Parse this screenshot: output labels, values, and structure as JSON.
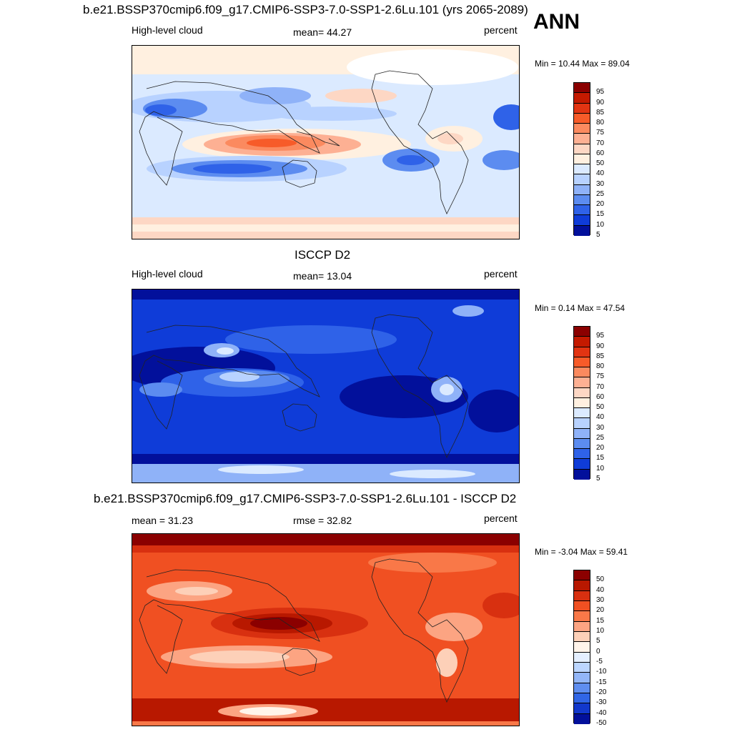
{
  "header": {
    "ann": "ANN"
  },
  "panels": [
    {
      "title": "b.e21.BSSP370cmip6.f09_g17.CMIP6-SSP3-7.0-SSP1-2.6Lu.101 (yrs 2065-2089)",
      "left_label": "High-level cloud",
      "center_label": "mean=  44.27",
      "units": "percent",
      "minmax": "Min =  10.44 Max =  89.04",
      "colorbar_labels": [
        "95",
        "90",
        "85",
        "80",
        "75",
        "70",
        "60",
        "50",
        "40",
        "30",
        "25",
        "20",
        "15",
        "10",
        "5"
      ],
      "colorbar_colors": [
        "#8b0000",
        "#c41a00",
        "#e23412",
        "#f75b29",
        "#fb8a5f",
        "#fdb093",
        "#fdd7c4",
        "#fff0e0",
        "#dbeaff",
        "#b8d2ff",
        "#8fb2f8",
        "#5c8cf0",
        "#2f62e8",
        "#0f3cd8",
        "#02109b"
      ]
    },
    {
      "title": "ISCCP D2",
      "left_label": "High-level cloud",
      "center_label": "mean=  13.04",
      "units": "percent",
      "minmax": "Min =   0.14 Max =  47.54",
      "colorbar_labels": [
        "95",
        "90",
        "85",
        "80",
        "75",
        "70",
        "60",
        "50",
        "40",
        "30",
        "25",
        "20",
        "15",
        "10",
        "5"
      ],
      "colorbar_colors": [
        "#8b0000",
        "#c41a00",
        "#e23412",
        "#f75b29",
        "#fb8a5f",
        "#fdb093",
        "#fdd7c4",
        "#fff0e0",
        "#dbeaff",
        "#b8d2ff",
        "#8fb2f8",
        "#5c8cf0",
        "#2f62e8",
        "#0f3cd8",
        "#02109b"
      ]
    },
    {
      "title": "b.e21.BSSP370cmip6.f09_g17.CMIP6-SSP3-7.0-SSP1-2.6Lu.101 - ISCCP D2",
      "left_label": "mean =  31.23",
      "center_label": "rmse =  32.82",
      "units": "percent",
      "minmax": "Min =  -3.04 Max =  59.41",
      "colorbar_labels": [
        "50",
        "40",
        "30",
        "20",
        "15",
        "10",
        "5",
        "0",
        "-5",
        "-10",
        "-15",
        "-20",
        "-30",
        "-40",
        "-50"
      ],
      "colorbar_colors": [
        "#8b0000",
        "#b81800",
        "#d83010",
        "#f05022",
        "#f97848",
        "#fca482",
        "#fdd0b8",
        "#fff4ea",
        "#e4efff",
        "#bcd6ff",
        "#93b6f8",
        "#5f8ef0",
        "#3166e6",
        "#1238cc",
        "#02109b"
      ]
    }
  ]
}
